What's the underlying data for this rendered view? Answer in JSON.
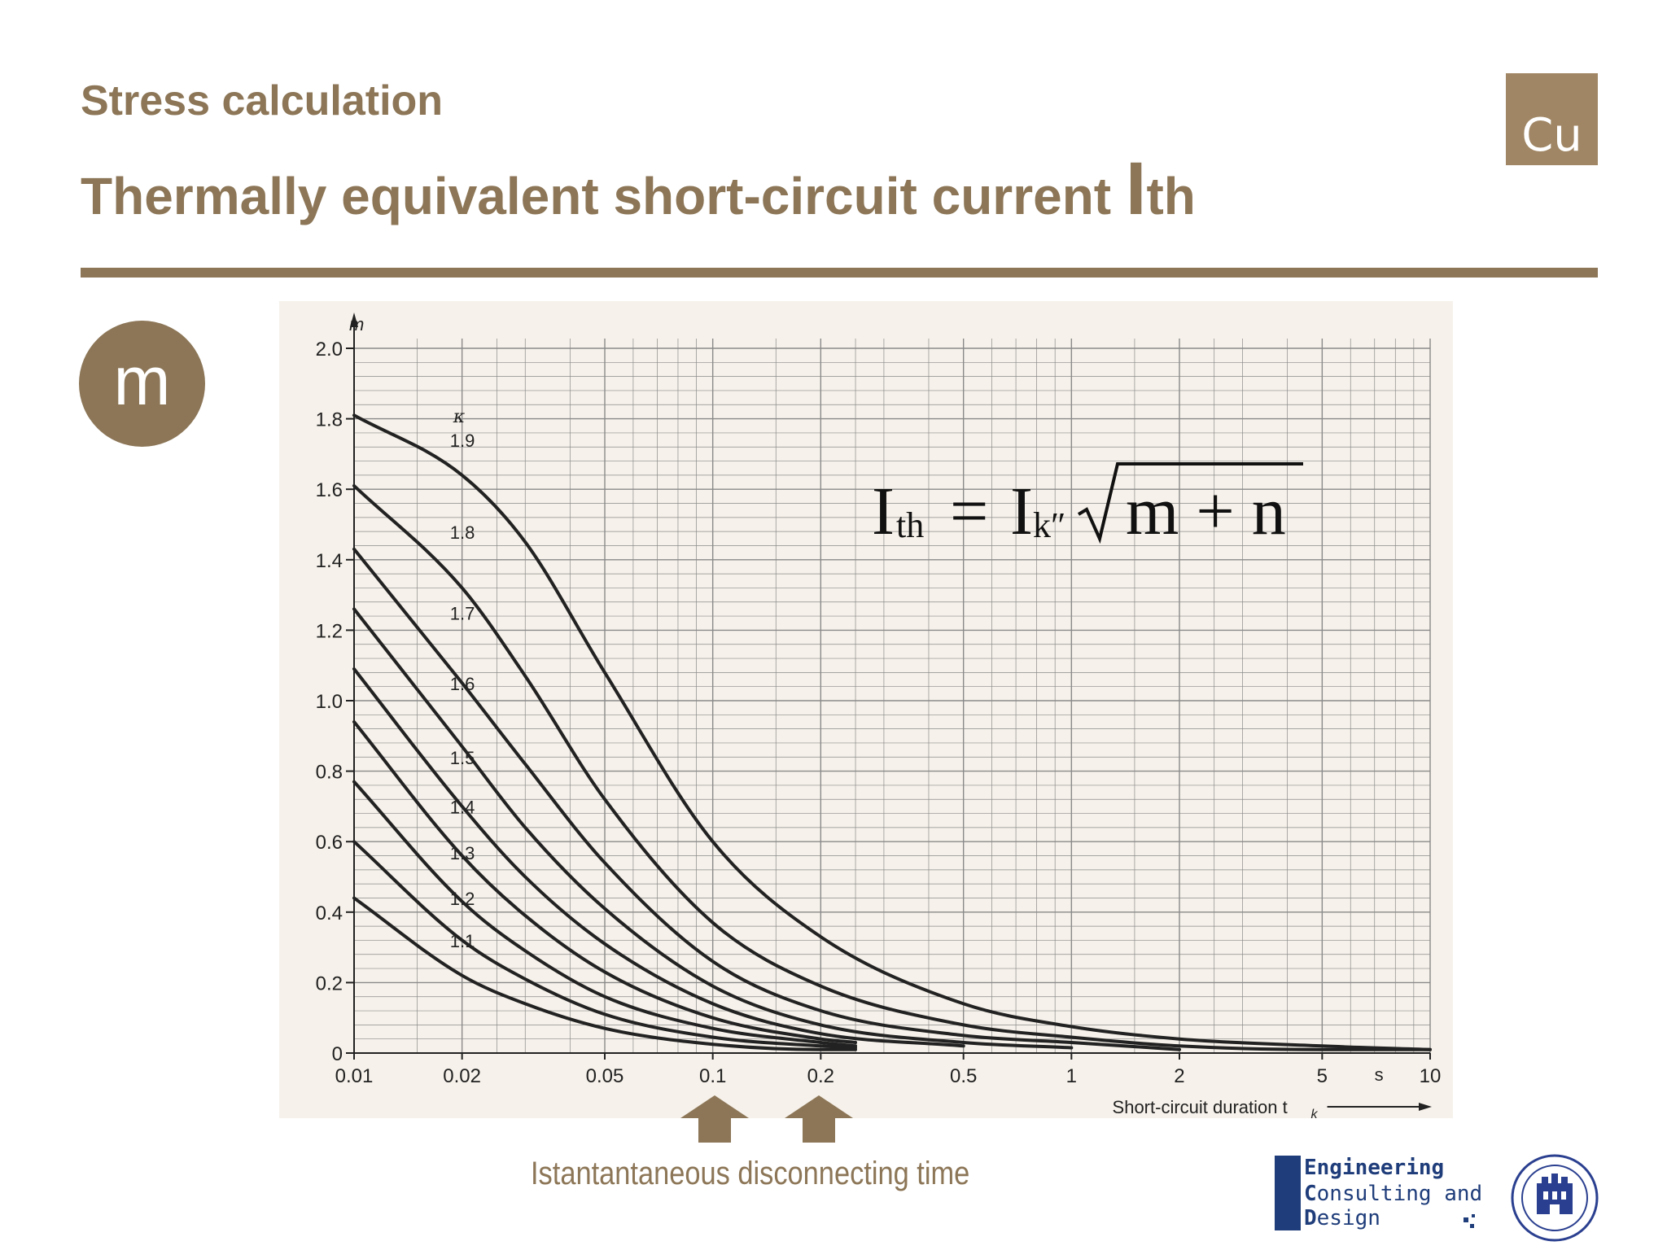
{
  "header": {
    "subtitle": "Stress calculation",
    "title_main": "Thermally equivalent short-circuit current ",
    "title_symbol_big": "I",
    "title_symbol_rest": "th"
  },
  "badge": {
    "text": "Cu"
  },
  "section_marker": {
    "text": "m"
  },
  "caption": "Istantantaneous disconnecting time",
  "logo": {
    "line1_first": "E",
    "line1_rest": "ngineering",
    "line2_first": "C",
    "line2_rest": "onsulting and",
    "line3_first": "D",
    "line3_rest": "esign"
  },
  "colors": {
    "brand": "#8c7657",
    "badge": "#a08664",
    "chart_bg": "#f6f1ea",
    "grid": "#8a8a8a",
    "curve": "#222222",
    "logo_blue": "#1f3d7a"
  },
  "formula": {
    "lhs_main": "I",
    "lhs_sub": "th",
    "equals": "=",
    "rhs_main": "I",
    "rhs_sub": "k″",
    "radicand": "m + n"
  },
  "chart_data": {
    "type": "line",
    "title": "",
    "xlabel": "Short-circuit duration t",
    "xlabel_subscript": "k",
    "x_unit": "s",
    "ylabel": "m",
    "x_scale": "log",
    "xlim": [
      0.01,
      10
    ],
    "ylim": [
      0,
      2.0
    ],
    "x_ticks": [
      0.01,
      0.02,
      0.05,
      0.1,
      0.2,
      0.5,
      1,
      2,
      5,
      10
    ],
    "x_tick_labels": [
      "0.01",
      "0.02",
      "0.05",
      "0.1",
      "0.2",
      "0.5",
      "1",
      "2",
      "5",
      "10"
    ],
    "y_ticks": [
      0,
      0.2,
      0.4,
      0.6,
      0.8,
      1.0,
      1.2,
      1.4,
      1.6,
      1.8,
      2.0
    ],
    "y_tick_labels": [
      "0",
      "0.2",
      "0.4",
      "0.6",
      "0.8",
      "1.0",
      "1.2",
      "1.4",
      "1.6",
      "1.8",
      "2.0"
    ],
    "grid": true,
    "parameter_symbol": "κ",
    "series": [
      {
        "name": "1.9",
        "x": [
          0.01,
          0.02,
          0.03,
          0.05,
          0.1,
          0.2,
          0.5,
          1,
          2,
          5,
          10
        ],
        "y": [
          1.81,
          1.64,
          1.45,
          1.08,
          0.6,
          0.33,
          0.14,
          0.075,
          0.04,
          0.02,
          0.01
        ]
      },
      {
        "name": "1.8",
        "x": [
          0.01,
          0.02,
          0.03,
          0.05,
          0.1,
          0.2,
          0.5,
          1,
          2,
          5,
          10
        ],
        "y": [
          1.61,
          1.32,
          1.07,
          0.72,
          0.37,
          0.19,
          0.08,
          0.045,
          0.02,
          0.01,
          0.01
        ]
      },
      {
        "name": "1.7",
        "x": [
          0.01,
          0.02,
          0.03,
          0.05,
          0.1,
          0.2,
          0.5,
          1,
          2
        ],
        "y": [
          1.43,
          1.05,
          0.82,
          0.54,
          0.26,
          0.12,
          0.05,
          0.03,
          0.01
        ]
      },
      {
        "name": "1.6",
        "x": [
          0.01,
          0.02,
          0.03,
          0.05,
          0.1,
          0.2,
          0.5,
          1
        ],
        "y": [
          1.26,
          0.87,
          0.64,
          0.41,
          0.19,
          0.08,
          0.03,
          0.015
        ]
      },
      {
        "name": "1.5",
        "x": [
          0.01,
          0.02,
          0.03,
          0.05,
          0.1,
          0.2,
          0.5
        ],
        "y": [
          1.09,
          0.7,
          0.5,
          0.31,
          0.14,
          0.055,
          0.02
        ]
      },
      {
        "name": "1.4",
        "x": [
          0.01,
          0.02,
          0.03,
          0.05,
          0.1,
          0.2,
          0.25
        ],
        "y": [
          0.94,
          0.56,
          0.39,
          0.23,
          0.1,
          0.04,
          0.03
        ]
      },
      {
        "name": "1.3",
        "x": [
          0.01,
          0.02,
          0.03,
          0.05,
          0.1,
          0.2,
          0.25
        ],
        "y": [
          0.77,
          0.43,
          0.29,
          0.16,
          0.07,
          0.03,
          0.02
        ]
      },
      {
        "name": "1.2",
        "x": [
          0.01,
          0.02,
          0.03,
          0.05,
          0.1,
          0.2,
          0.25
        ],
        "y": [
          0.6,
          0.32,
          0.21,
          0.11,
          0.045,
          0.02,
          0.015
        ]
      },
      {
        "name": "1.1",
        "x": [
          0.01,
          0.02,
          0.03,
          0.05,
          0.1,
          0.2,
          0.25
        ],
        "y": [
          0.44,
          0.22,
          0.14,
          0.07,
          0.025,
          0.01,
          0.01
        ]
      }
    ],
    "highlighted_x": [
      0.1,
      0.2
    ]
  }
}
